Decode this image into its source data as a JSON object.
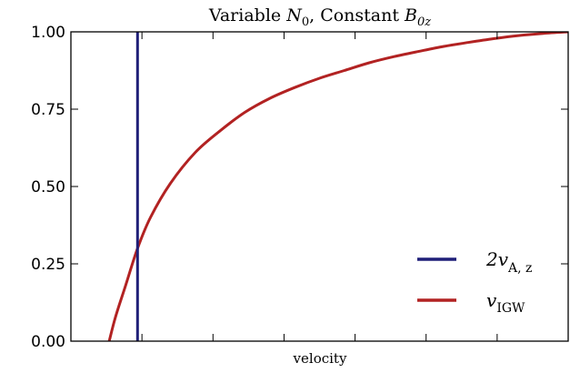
{
  "chart_data": {
    "type": "line",
    "title": {
      "prefix": "Variable ",
      "var1": "N",
      "sub1": "0",
      "middle": ", Constant ",
      "var2": "B",
      "sub2": "0z"
    },
    "xlabel": "velocity",
    "ylabel": "",
    "xlim": [
      0,
      1
    ],
    "ylim": [
      0,
      1
    ],
    "yticks": [
      "0.00",
      "0.25",
      "0.50",
      "0.75",
      "1.00"
    ],
    "xticks_labeled": false,
    "grid": false,
    "legend_placement": "lower-right",
    "series": [
      {
        "name_main": "2v",
        "name_sub": "A, z",
        "kind": "vertical-line",
        "x": 0.134,
        "color": "#1f1f78"
      },
      {
        "name_main": "v",
        "name_sub": "IGW",
        "kind": "curve",
        "color": "#b22222",
        "x": [
          0.077,
          0.09,
          0.11,
          0.134,
          0.16,
          0.2,
          0.25,
          0.3,
          0.35,
          0.4,
          0.45,
          0.5,
          0.55,
          0.6,
          0.65,
          0.7,
          0.75,
          0.8,
          0.85,
          0.9,
          0.95,
          1.0
        ],
        "y": [
          0.0,
          0.08,
          0.18,
          0.3,
          0.4,
          0.51,
          0.61,
          0.68,
          0.74,
          0.785,
          0.82,
          0.85,
          0.875,
          0.9,
          0.92,
          0.937,
          0.953,
          0.966,
          0.978,
          0.988,
          0.995,
          1.0
        ]
      }
    ]
  }
}
